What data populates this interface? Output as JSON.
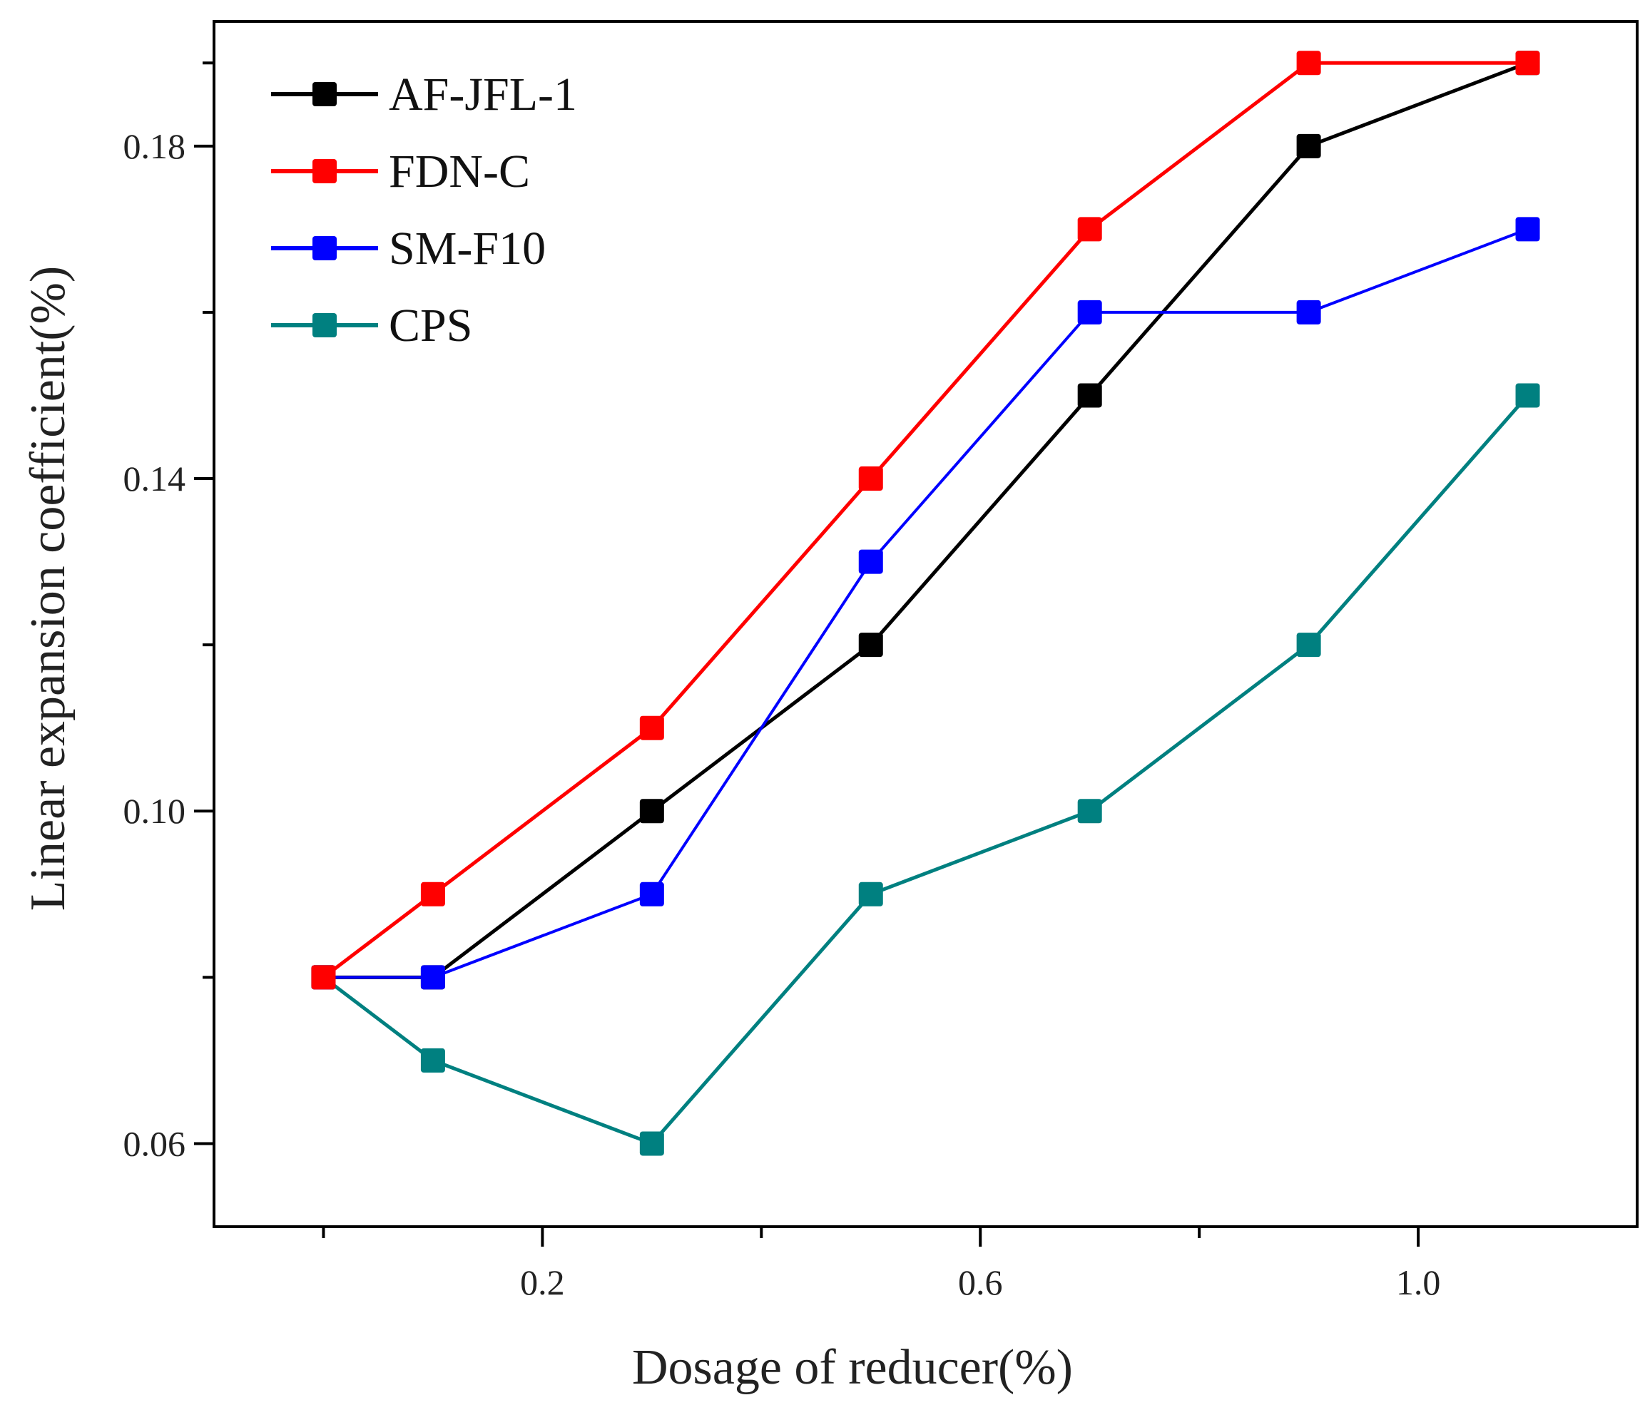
{
  "chart_data": {
    "type": "line",
    "xlabel": "Dosage of reducer(%)",
    "ylabel": "Linear expansion coefficient(%)",
    "xlim": [
      -0.1,
      1.2
    ],
    "ylim": [
      0.05,
      0.195
    ],
    "x_ticks": [
      0.2,
      0.6,
      1.0
    ],
    "x_tick_labels": [
      "0.2",
      "0.6",
      "1.0"
    ],
    "x_minor_ticks": [
      0.0,
      0.4,
      0.8
    ],
    "y_ticks": [
      0.06,
      0.1,
      0.14,
      0.18
    ],
    "y_tick_labels": [
      "0.06",
      "0.10",
      "0.14",
      "0.18"
    ],
    "y_minor_ticks": [
      0.08,
      0.12,
      0.16,
      0.19
    ],
    "legend_position": "top-left",
    "x": [
      0.0,
      0.1,
      0.3,
      0.5,
      0.7,
      0.9,
      1.1
    ],
    "series": [
      {
        "name": "AF-JFL-1",
        "color": "#000000",
        "marker": "square",
        "values": [
          0.08,
          0.08,
          0.1,
          0.12,
          0.15,
          0.18,
          0.19
        ]
      },
      {
        "name": "FDN-C",
        "color": "#ff0000",
        "marker": "square",
        "values": [
          0.08,
          0.09,
          0.11,
          0.14,
          0.17,
          0.19,
          0.19
        ]
      },
      {
        "name": "SM-F10",
        "color": "#0000ff",
        "marker": "square",
        "values": [
          0.08,
          0.08,
          0.09,
          0.13,
          0.16,
          0.16,
          0.17
        ]
      },
      {
        "name": "CPS",
        "color": "#008080",
        "marker": "square",
        "values": [
          0.08,
          0.07,
          0.06,
          0.09,
          0.1,
          0.12,
          0.15
        ]
      }
    ]
  }
}
